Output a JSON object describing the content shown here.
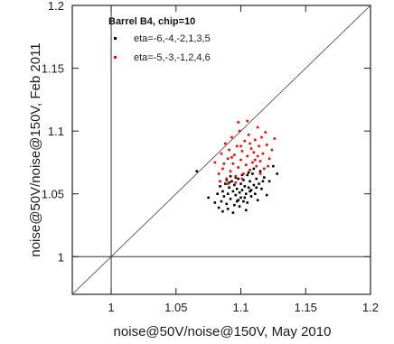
{
  "chart_data": {
    "type": "scatter",
    "xlabel": "noise@50V/noise@150V, May 2010",
    "ylabel": "noise@50V/noise@150V, Feb 2011",
    "xlim": [
      0.97,
      1.2
    ],
    "ylim": [
      0.97,
      1.2
    ],
    "xticks": [
      "1",
      "1.05",
      "1.1",
      "1.15",
      "1.2"
    ],
    "yticks": [
      "1",
      "1.05",
      "1.1",
      "1.15",
      "1.2"
    ],
    "grid": false,
    "legend_position": "top-left",
    "legend_title": "Barrel B4, chip=10",
    "reference_lines": {
      "diagonal": "y = x",
      "vertical_x": 1,
      "horizontal_y": 1
    },
    "series": [
      {
        "name": "eta=-6,-4,-2,1,3,5",
        "color": "#000000",
        "points": [
          [
            1.066,
            1.068
          ],
          [
            1.075,
            1.047
          ],
          [
            1.08,
            1.043
          ],
          [
            1.082,
            1.05
          ],
          [
            1.084,
            1.056
          ],
          [
            1.085,
            1.044
          ],
          [
            1.086,
            1.052
          ],
          [
            1.087,
            1.048
          ],
          [
            1.088,
            1.058
          ],
          [
            1.089,
            1.042
          ],
          [
            1.09,
            1.05
          ],
          [
            1.091,
            1.055
          ],
          [
            1.092,
            1.046
          ],
          [
            1.093,
            1.06
          ],
          [
            1.094,
            1.052
          ],
          [
            1.095,
            1.041
          ],
          [
            1.095,
            1.057
          ],
          [
            1.096,
            1.049
          ],
          [
            1.097,
            1.054
          ],
          [
            1.098,
            1.062
          ],
          [
            1.098,
            1.045
          ],
          [
            1.099,
            1.051
          ],
          [
            1.1,
            1.058
          ],
          [
            1.1,
            1.047
          ],
          [
            1.101,
            1.053
          ],
          [
            1.102,
            1.044
          ],
          [
            1.102,
            1.061
          ],
          [
            1.103,
            1.056
          ],
          [
            1.104,
            1.05
          ],
          [
            1.105,
            1.065
          ],
          [
            1.105,
            1.043
          ],
          [
            1.106,
            1.055
          ],
          [
            1.107,
            1.06
          ],
          [
            1.108,
            1.048
          ],
          [
            1.108,
            1.053
          ],
          [
            1.109,
            1.066
          ],
          [
            1.11,
            1.057
          ],
          [
            1.111,
            1.05
          ],
          [
            1.112,
            1.062
          ],
          [
            1.113,
            1.045
          ],
          [
            1.114,
            1.058
          ],
          [
            1.115,
            1.068
          ],
          [
            1.116,
            1.054
          ],
          [
            1.118,
            1.063
          ],
          [
            1.12,
            1.049
          ],
          [
            1.122,
            1.06
          ],
          [
            1.125,
            1.072
          ],
          [
            1.128,
            1.066
          ],
          [
            1.083,
            1.039
          ],
          [
            1.086,
            1.036
          ],
          [
            1.09,
            1.038
          ],
          [
            1.094,
            1.035
          ],
          [
            1.099,
            1.04
          ],
          [
            1.104,
            1.037
          ],
          [
            1.089,
            1.061
          ],
          [
            1.092,
            1.064
          ],
          [
            1.096,
            1.063
          ],
          [
            1.101,
            1.065
          ],
          [
            1.106,
            1.067
          ],
          [
            1.11,
            1.07
          ],
          [
            1.097,
            1.044
          ],
          [
            1.091,
            1.059
          ],
          [
            1.103,
            1.047
          ],
          [
            1.107,
            1.052
          ],
          [
            1.112,
            1.055
          ],
          [
            1.117,
            1.06
          ]
        ]
      },
      {
        "name": "eta=-5,-3,-1,2,4,6",
        "color": "#ff0000",
        "points": [
          [
            1.08,
            1.075
          ],
          [
            1.083,
            1.066
          ],
          [
            1.085,
            1.082
          ],
          [
            1.086,
            1.07
          ],
          [
            1.088,
            1.09
          ],
          [
            1.089,
            1.062
          ],
          [
            1.09,
            1.078
          ],
          [
            1.091,
            1.085
          ],
          [
            1.092,
            1.068
          ],
          [
            1.093,
            1.095
          ],
          [
            1.094,
            1.074
          ],
          [
            1.095,
            1.081
          ],
          [
            1.096,
            1.064
          ],
          [
            1.097,
            1.088
          ],
          [
            1.098,
            1.071
          ],
          [
            1.099,
            1.1
          ],
          [
            1.1,
            1.077
          ],
          [
            1.101,
            1.084
          ],
          [
            1.102,
            1.066
          ],
          [
            1.103,
            1.092
          ],
          [
            1.104,
            1.073
          ],
          [
            1.105,
            1.08
          ],
          [
            1.106,
            1.097
          ],
          [
            1.107,
            1.069
          ],
          [
            1.108,
            1.086
          ],
          [
            1.109,
            1.075
          ],
          [
            1.11,
            1.083
          ],
          [
            1.111,
            1.093
          ],
          [
            1.112,
            1.072
          ],
          [
            1.113,
            1.08
          ],
          [
            1.114,
            1.088
          ],
          [
            1.115,
            1.076
          ],
          [
            1.116,
            1.095
          ],
          [
            1.117,
            1.082
          ],
          [
            1.118,
            1.07
          ],
          [
            1.12,
            1.089
          ],
          [
            1.122,
            1.078
          ],
          [
            1.124,
            1.085
          ],
          [
            1.126,
            1.094
          ],
          [
            1.098,
            1.107
          ],
          [
            1.105,
            1.108
          ],
          [
            1.113,
            1.103
          ],
          [
            1.119,
            1.099
          ],
          [
            1.084,
            1.06
          ],
          [
            1.09,
            1.058
          ],
          [
            1.096,
            1.059
          ],
          [
            1.101,
            1.062
          ],
          [
            1.087,
            1.074
          ],
          [
            1.093,
            1.079
          ],
          [
            1.1,
            1.088
          ],
          [
            1.107,
            1.09
          ],
          [
            1.111,
            1.077
          ],
          [
            1.115,
            1.066
          ],
          [
            1.121,
            1.072
          ]
        ]
      }
    ]
  }
}
